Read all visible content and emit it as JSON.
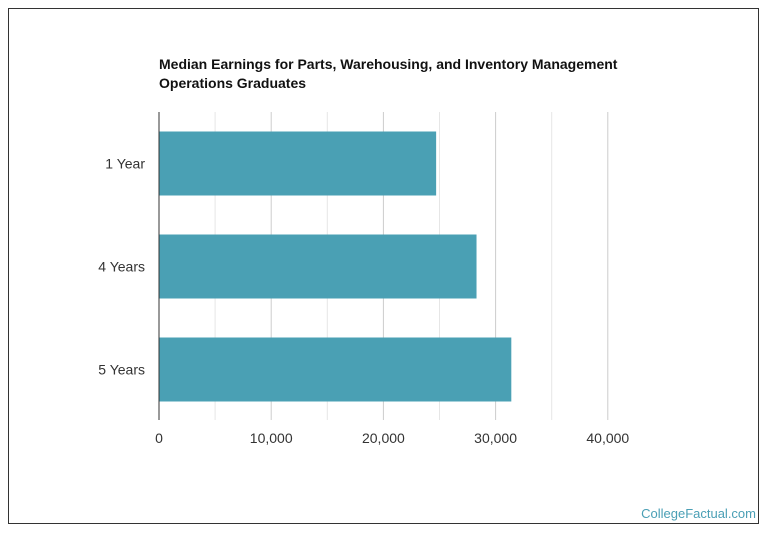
{
  "chart_data": {
    "type": "bar",
    "orientation": "horizontal",
    "title": "Median Earnings for Parts, Warehousing, and Inventory Management Operations Graduates",
    "categories": [
      "1 Year",
      "4 Years",
      "5 Years"
    ],
    "values": [
      24700,
      28300,
      31400
    ],
    "xlim": [
      0,
      40000
    ],
    "xticks": [
      0,
      10000,
      20000,
      30000,
      40000
    ],
    "xtick_labels": [
      "0",
      "10,000",
      "20,000",
      "30,000",
      "40,000"
    ],
    "grid": true,
    "bar_color": "#4aa0b4"
  },
  "watermark": "CollegeFactual.com"
}
